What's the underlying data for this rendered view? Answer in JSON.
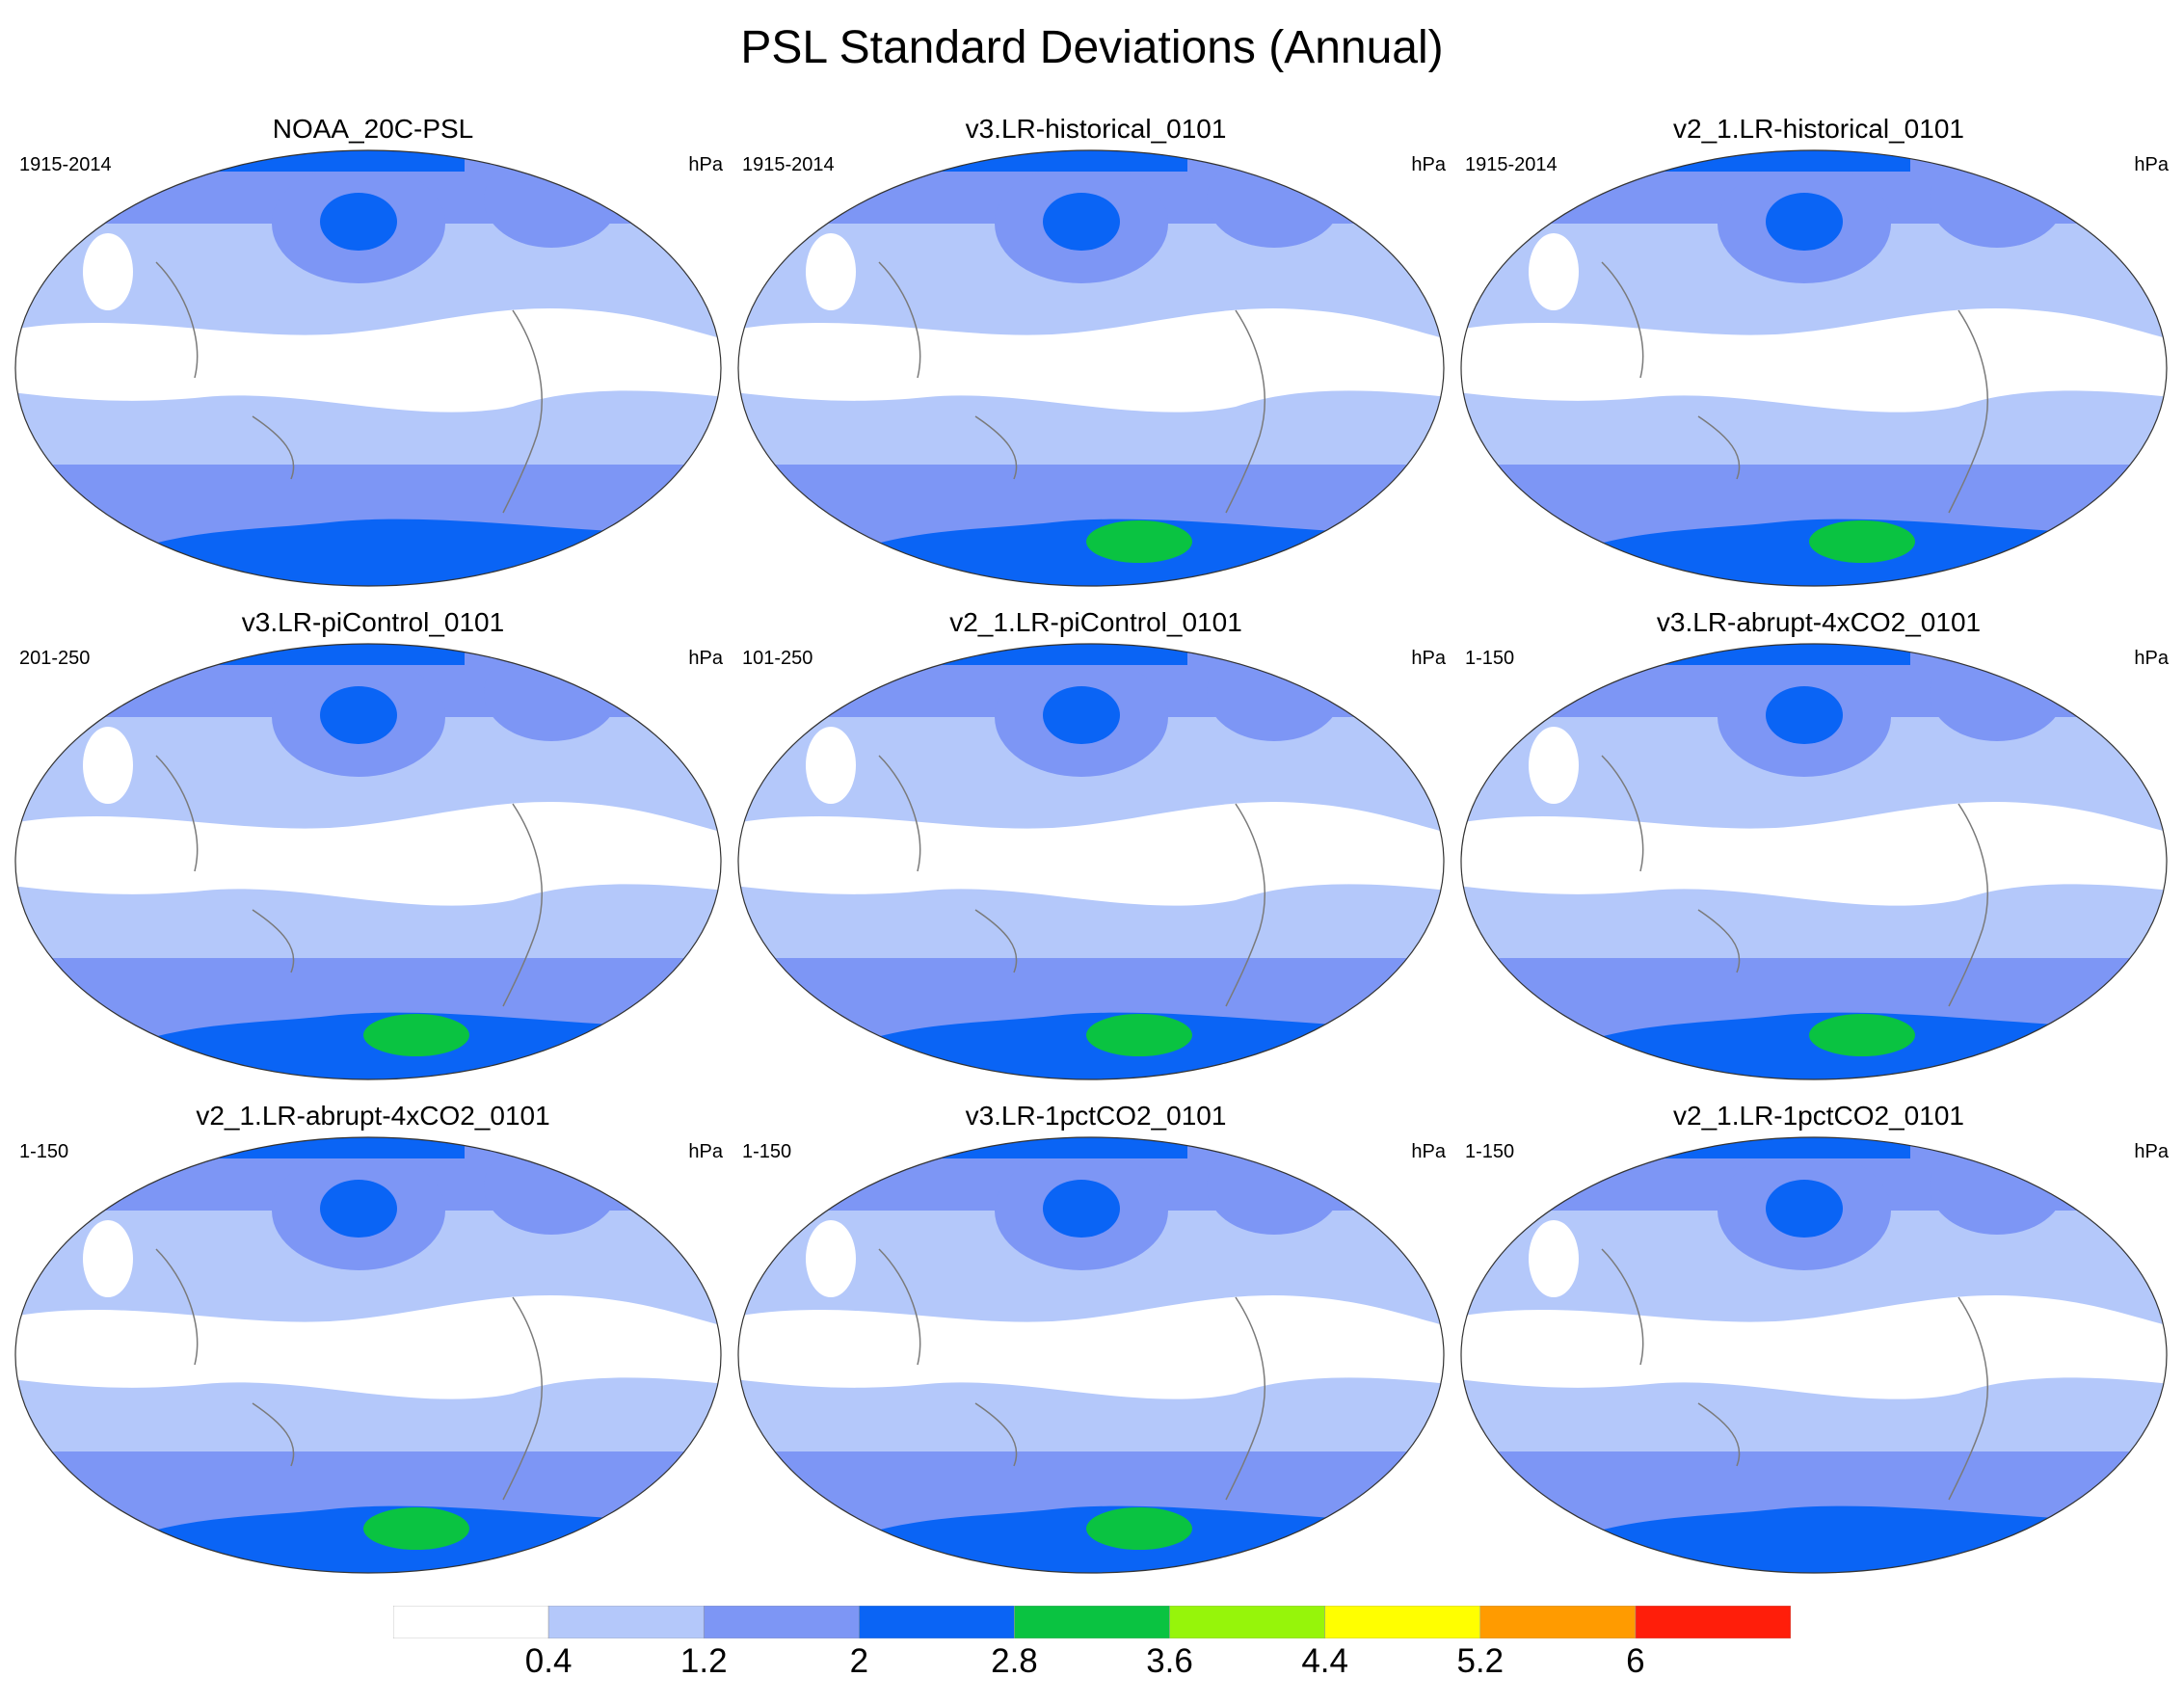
{
  "title": "PSL Standard Deviations (Annual)",
  "panels": [
    {
      "title": "NOAA_20C-PSL",
      "period": "1915-2014",
      "unit": "hPa",
      "max_class": 3
    },
    {
      "title": "v3.LR-historical_0101",
      "period": "1915-2014",
      "unit": "hPa",
      "max_class": 4
    },
    {
      "title": "v2_1.LR-historical_0101",
      "period": "1915-2014",
      "unit": "hPa",
      "max_class": 4
    },
    {
      "title": "v3.LR-piControl_0101",
      "period": "201-250",
      "unit": "hPa",
      "max_class": 4
    },
    {
      "title": "v2_1.LR-piControl_0101",
      "period": "101-250",
      "unit": "hPa",
      "max_class": 4
    },
    {
      "title": "v3.LR-abrupt-4xCO2_0101",
      "period": "1-150",
      "unit": "hPa",
      "max_class": 4
    },
    {
      "title": "v2_1.LR-abrupt-4xCO2_0101",
      "period": "1-150",
      "unit": "hPa",
      "max_class": 4
    },
    {
      "title": "v3.LR-1pctCO2_0101",
      "period": "1-150",
      "unit": "hPa",
      "max_class": 4
    },
    {
      "title": "v2_1.LR-1pctCO2_0101",
      "period": "1-150",
      "unit": "hPa",
      "max_class": 3
    }
  ],
  "colorbar": {
    "levels": [
      "0.4",
      "1.2",
      "2",
      "2.8",
      "3.6",
      "4.4",
      "5.2",
      "6"
    ],
    "colors": [
      "#ffffff",
      "#b4c8fa",
      "#7d96f5",
      "#0a64f5",
      "#0ac341",
      "#96f50a",
      "#ffff00",
      "#ff9b00",
      "#ff1e0a"
    ]
  }
}
